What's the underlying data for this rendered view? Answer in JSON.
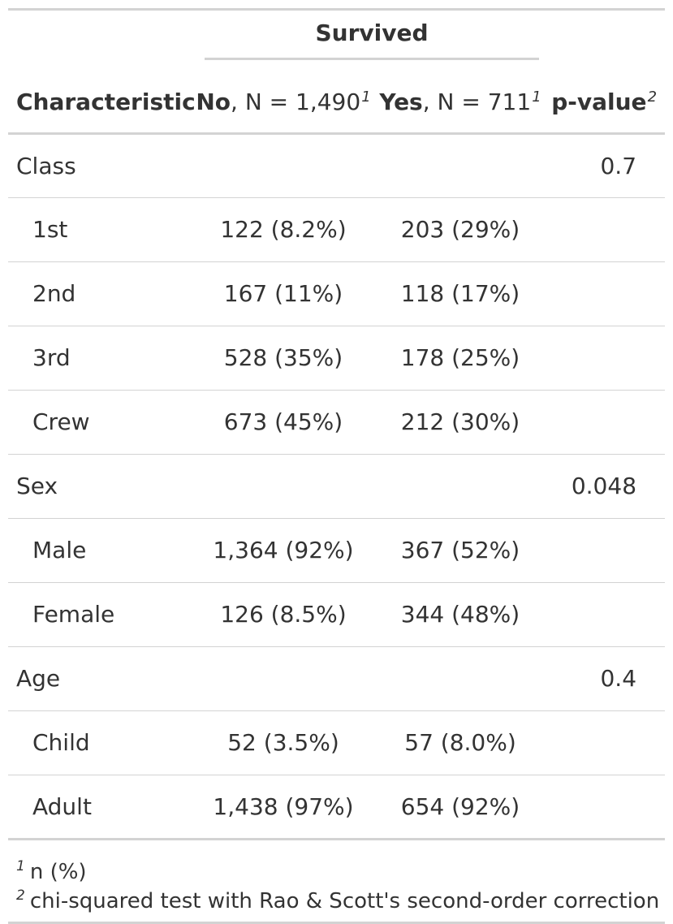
{
  "table": {
    "spanner": "Survived",
    "headers": {
      "characteristic": "Characteristic",
      "no_bold": "No",
      "no_rest": ", N = 1,490",
      "no_mark": "1",
      "yes_bold": "Yes",
      "yes_rest": ", N = 711",
      "yes_mark": "1",
      "pvalue": "p-value",
      "pvalue_mark": "2"
    },
    "rows": [
      {
        "label": "Class",
        "no": "",
        "yes": "",
        "p": "0.7"
      },
      {
        "label": "1st",
        "no": "122 (8.2%)",
        "yes": "203 (29%)",
        "p": ""
      },
      {
        "label": "2nd",
        "no": "167 (11%)",
        "yes": "118 (17%)",
        "p": ""
      },
      {
        "label": "3rd",
        "no": "528 (35%)",
        "yes": "178 (25%)",
        "p": ""
      },
      {
        "label": "Crew",
        "no": "673 (45%)",
        "yes": "212 (30%)",
        "p": ""
      },
      {
        "label": "Sex",
        "no": "",
        "yes": "",
        "p": "0.048"
      },
      {
        "label": "Male",
        "no": "1,364 (92%)",
        "yes": "367 (52%)",
        "p": ""
      },
      {
        "label": "Female",
        "no": "126 (8.5%)",
        "yes": "344 (48%)",
        "p": ""
      },
      {
        "label": "Age",
        "no": "",
        "yes": "",
        "p": "0.4"
      },
      {
        "label": "Child",
        "no": "52 (3.5%)",
        "yes": "57 (8.0%)",
        "p": ""
      },
      {
        "label": "Adult",
        "no": "1,438 (97%)",
        "yes": "654 (92%)",
        "p": ""
      }
    ],
    "footnotes": [
      {
        "mark": "1",
        "text": "n (%)"
      },
      {
        "mark": "2",
        "text": "chi-squared test with Rao & Scott's second-order correction"
      }
    ]
  },
  "colors": {
    "text": "#333333",
    "rule": "#d3d3d3"
  }
}
